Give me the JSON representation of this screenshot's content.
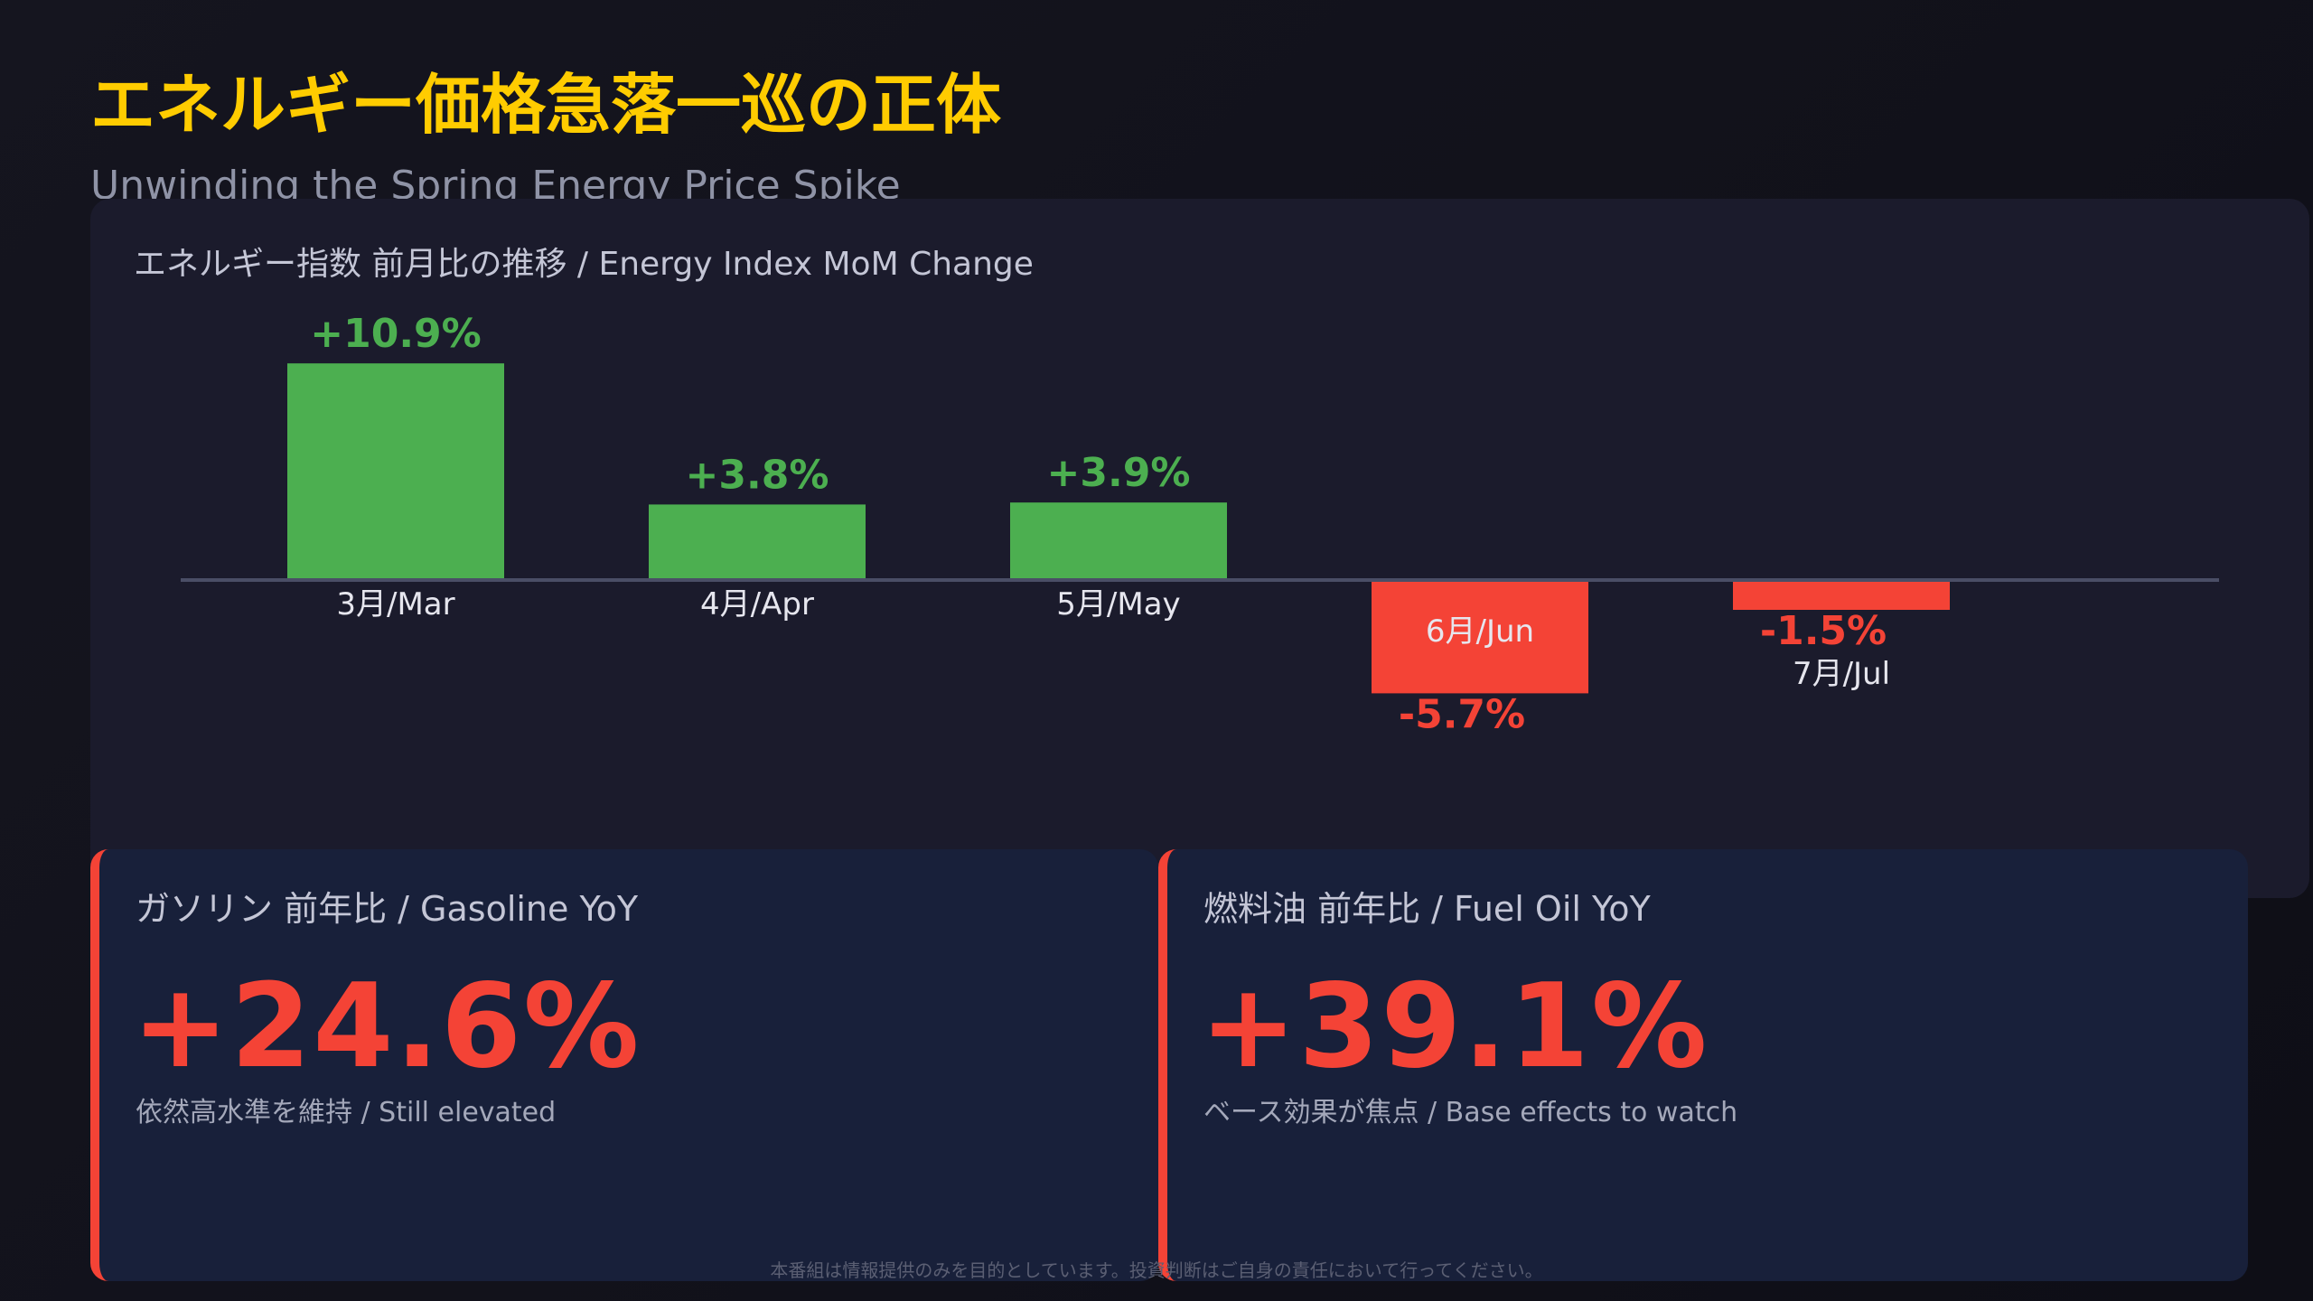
{
  "header": {
    "title": "エネルギー価格急落一巡の正体",
    "subtitle": "Unwinding the Spring Energy Price Spike"
  },
  "chart_data": {
    "type": "bar",
    "title": "エネルギー指数 前月比の推移 / Energy Index MoM Change",
    "categories": [
      "3月/Mar",
      "4月/Apr",
      "5月/May",
      "6月/Jun",
      "7月/Jul"
    ],
    "values": [
      10.9,
      3.8,
      3.9,
      -5.7,
      -1.5
    ],
    "value_labels": [
      "+10.9%",
      "+3.8%",
      "+3.9%",
      "-5.7%",
      "-1.5%"
    ],
    "unit": "%",
    "ylim": [
      -8,
      11.5
    ],
    "grid": false,
    "legend": "none",
    "colors": {
      "positive": "#4caf50",
      "negative": "#f44336",
      "baseline": "#4a4e66"
    }
  },
  "cards": [
    {
      "label": "ガソリン 前年比 / Gasoline YoY",
      "value": "+24.6%",
      "note": "依然高水準を維持 / Still elevated"
    },
    {
      "label": "燃料油 前年比 / Fuel Oil YoY",
      "value": "+39.1%",
      "note": "ベース効果が焦点 / Base effects to watch"
    }
  ],
  "footer": {
    "disclaimer": "本番組は情報提供のみを目的としています。投資判断はご自身の責任において行ってください。"
  },
  "colors": {
    "title": "#ffcc00",
    "accent_negative": "#f44336",
    "accent_positive": "#4caf50",
    "background": "#12121c",
    "panel": "#1b1b2c",
    "card": "#18203a"
  }
}
